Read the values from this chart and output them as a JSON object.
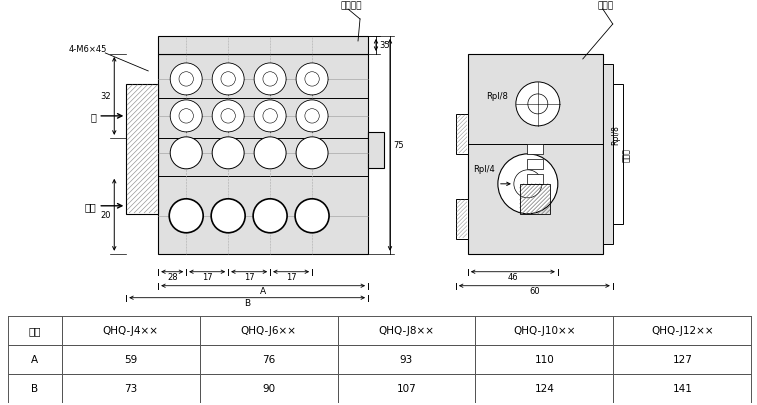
{
  "table_headers": [
    "型号",
    "QHQ-J4××",
    "QHQ-J6××",
    "QHQ-J8××",
    "QHQ-J10××",
    "QHQ-J12××"
  ],
  "table_rows": [
    [
      "A",
      "59",
      "76",
      "93",
      "110",
      "127"
    ],
    [
      "B",
      "73",
      "90",
      "107",
      "124",
      "141"
    ]
  ],
  "bg_color": "#ffffff",
  "line_color": "#000000",
  "gray_light": "#e0e0e0",
  "gray_med": "#b0b0b0",
  "gray_dark": "#888888"
}
